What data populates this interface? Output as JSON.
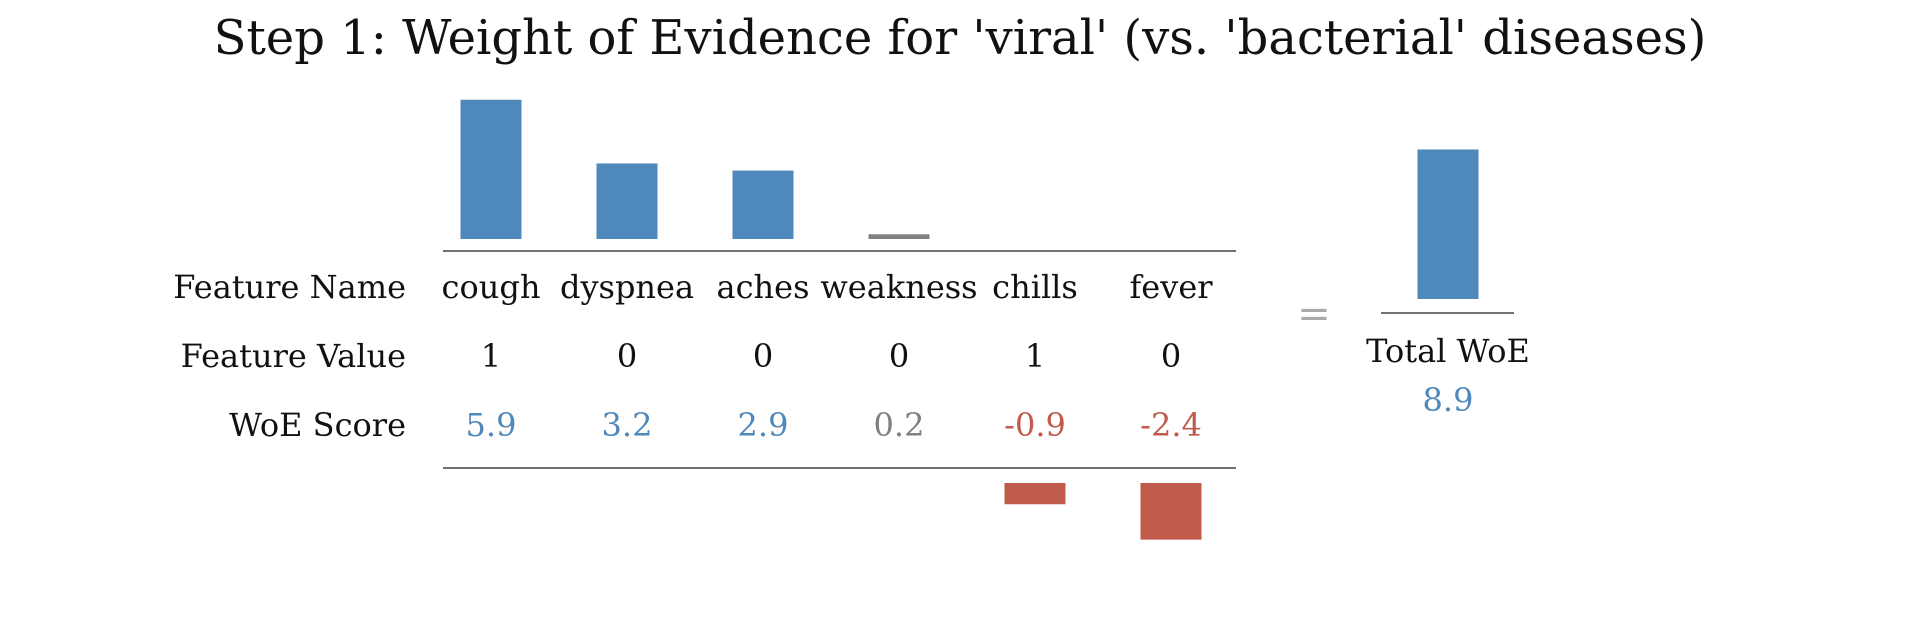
{
  "chart_data": {
    "type": "bar",
    "title": "Step 1: Weight of Evidence for 'viral' (vs. 'bacterial' diseases)",
    "row_labels": {
      "name": "Feature Name",
      "value": "Feature Value",
      "score": "WoE Score"
    },
    "categories": [
      "cough",
      "dyspnea",
      "aches",
      "weakness",
      "chills",
      "fever"
    ],
    "feature_values": [
      "1",
      "0",
      "0",
      "0",
      "1",
      "0"
    ],
    "woe_scores": [
      5.9,
      3.2,
      2.9,
      0.2,
      -0.9,
      -2.4
    ],
    "woe_score_labels": [
      "5.9",
      "3.2",
      "2.9",
      "0.2",
      "-0.9",
      "-2.4"
    ],
    "score_colors": [
      "positive",
      "positive",
      "positive",
      "neutral",
      "negative",
      "negative"
    ],
    "equals_sign": "=",
    "total": {
      "label": "Total WoE",
      "value": 8.9,
      "value_label": "8.9"
    },
    "colors": {
      "positive": "#4f88bb",
      "neutral": "#808080",
      "negative": "#c05a4b"
    },
    "grid": false,
    "legend": "none"
  }
}
